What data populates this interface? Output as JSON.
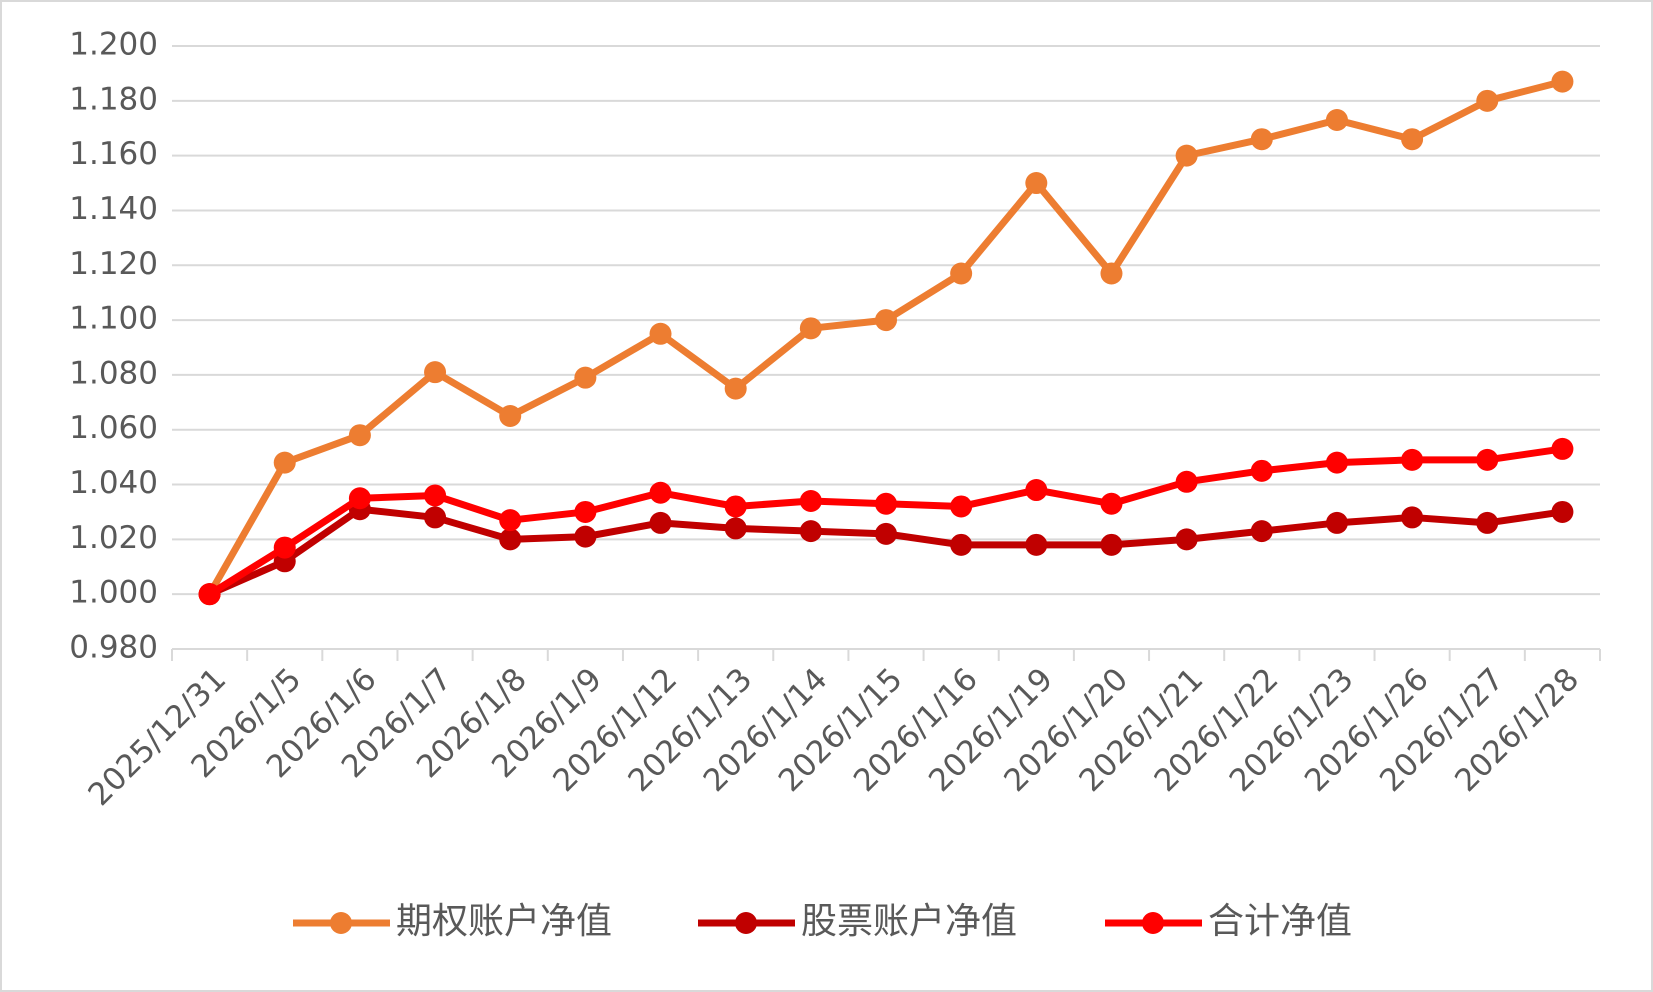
{
  "chart_data": {
    "type": "line",
    "categories": [
      "2025/12/31",
      "2026/1/5",
      "2026/1/6",
      "2026/1/7",
      "2026/1/8",
      "2026/1/9",
      "2026/1/12",
      "2026/1/13",
      "2026/1/14",
      "2026/1/15",
      "2026/1/16",
      "2026/1/19",
      "2026/1/20",
      "2026/1/21",
      "2026/1/22",
      "2026/1/23",
      "2026/1/26",
      "2026/1/27",
      "2026/1/28"
    ],
    "series": [
      {
        "name": "期权账户净值",
        "color": "#ED7D31",
        "values": [
          1.0,
          1.048,
          1.058,
          1.081,
          1.065,
          1.079,
          1.095,
          1.075,
          1.097,
          1.1,
          1.117,
          1.15,
          1.117,
          1.16,
          1.166,
          1.173,
          1.166,
          1.18,
          1.187
        ]
      },
      {
        "name": "股票账户净值",
        "color": "#C00000",
        "values": [
          1.0,
          1.012,
          1.031,
          1.028,
          1.02,
          1.021,
          1.026,
          1.024,
          1.023,
          1.022,
          1.018,
          1.018,
          1.018,
          1.02,
          1.023,
          1.026,
          1.028,
          1.026,
          1.03
        ]
      },
      {
        "name": "合计净值",
        "color": "#FF0000",
        "values": [
          1.0,
          1.017,
          1.035,
          1.036,
          1.027,
          1.03,
          1.037,
          1.032,
          1.034,
          1.033,
          1.032,
          1.038,
          1.033,
          1.041,
          1.045,
          1.048,
          1.049,
          1.049,
          1.053
        ]
      }
    ],
    "ylim": [
      0.98,
      1.2
    ],
    "yticks": [
      {
        "value": 0.98,
        "label": "0.980"
      },
      {
        "value": 1.0,
        "label": "1.000"
      },
      {
        "value": 1.02,
        "label": "1.020"
      },
      {
        "value": 1.04,
        "label": "1.040"
      },
      {
        "value": 1.06,
        "label": "1.060"
      },
      {
        "value": 1.08,
        "label": "1.080"
      },
      {
        "value": 1.1,
        "label": "1.100"
      },
      {
        "value": 1.12,
        "label": "1.120"
      },
      {
        "value": 1.14,
        "label": "1.140"
      },
      {
        "value": 1.16,
        "label": "1.160"
      },
      {
        "value": 1.18,
        "label": "1.180"
      },
      {
        "value": 1.2,
        "label": "1.200"
      }
    ],
    "grid": true,
    "legend": "bottom"
  }
}
